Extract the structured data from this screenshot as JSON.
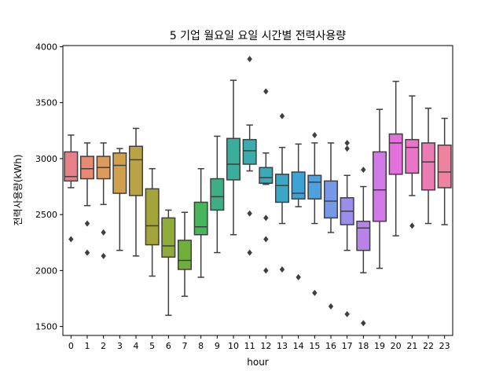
{
  "chart_data": {
    "type": "box",
    "title": "5 기업 월요일 요일 시간별 전력사용량",
    "xlabel": "hour",
    "ylabel": "전력사용량(kWh)",
    "ylim": [
      1420,
      4010
    ],
    "yticks": [
      1500,
      2000,
      2500,
      3000,
      3500,
      4000
    ],
    "grid": false,
    "categories": [
      "0",
      "1",
      "2",
      "3",
      "4",
      "5",
      "6",
      "7",
      "8",
      "9",
      "10",
      "11",
      "12",
      "13",
      "14",
      "15",
      "16",
      "17",
      "18",
      "19",
      "20",
      "21",
      "22",
      "23"
    ],
    "colors": [
      "#e8808a",
      "#e88a72",
      "#dd9a5e",
      "#d0a04d",
      "#b9a344",
      "#a3a43c",
      "#8fac3a",
      "#6fb03b",
      "#48b45b",
      "#3caf85",
      "#3aae9b",
      "#3bac ab",
      "#3ba9b8",
      "#3ca6c6",
      "#3ea3d4",
      "#4ea0e0",
      "#7598e8",
      "#9a8ee9",
      "#b683e8",
      "#d17ae5",
      "#e271dc",
      "#e974c8",
      "#ec7bb4",
      "#ee83a0"
    ],
    "boxes": [
      {
        "hour": "0",
        "whislo": 2740,
        "q1": 2800,
        "median": 2840,
        "q3": 3060,
        "whishi": 3210,
        "fliers": [
          2280
        ]
      },
      {
        "hour": "1",
        "whislo": 2580,
        "q1": 2820,
        "median": 2910,
        "q3": 3020,
        "whishi": 3140,
        "fliers": [
          2420,
          2160
        ]
      },
      {
        "hour": "2",
        "whislo": 2590,
        "q1": 2820,
        "median": 2920,
        "q3": 3020,
        "whishi": 3140,
        "fliers": [
          2340,
          2130
        ]
      },
      {
        "hour": "3",
        "whislo": 2180,
        "q1": 2690,
        "median": 2940,
        "q3": 3050,
        "whishi": 3090,
        "fliers": []
      },
      {
        "hour": "4",
        "whislo": 2130,
        "q1": 2670,
        "median": 2990,
        "q3": 3110,
        "whishi": 3270,
        "fliers": []
      },
      {
        "hour": "5",
        "whislo": 1950,
        "q1": 2230,
        "median": 2400,
        "q3": 2730,
        "whishi": 2910,
        "fliers": []
      },
      {
        "hour": "6",
        "whislo": 1600,
        "q1": 2120,
        "median": 2220,
        "q3": 2470,
        "whishi": 2540,
        "fliers": []
      },
      {
        "hour": "7",
        "whislo": 1770,
        "q1": 2010,
        "median": 2090,
        "q3": 2270,
        "whishi": 2520,
        "fliers": []
      },
      {
        "hour": "8",
        "whislo": 1940,
        "q1": 2320,
        "median": 2390,
        "q3": 2610,
        "whishi": 2910,
        "fliers": []
      },
      {
        "hour": "9",
        "whislo": 2160,
        "q1": 2540,
        "median": 2660,
        "q3": 2820,
        "whishi": 3200,
        "fliers": []
      },
      {
        "hour": "10",
        "whislo": 2320,
        "q1": 2810,
        "median": 2950,
        "q3": 3180,
        "whishi": 3700,
        "fliers": []
      },
      {
        "hour": "11",
        "whislo": 2890,
        "q1": 2950,
        "median": 3070,
        "q3": 3170,
        "whishi": 3300,
        "fliers": [
          3890,
          2510,
          2160
        ]
      },
      {
        "hour": "12",
        "whislo": 2770,
        "q1": 2780,
        "median": 2830,
        "q3": 2920,
        "whishi": 3050,
        "fliers": [
          3600,
          2470,
          2280,
          2000
        ]
      },
      {
        "hour": "13",
        "whislo": 2420,
        "q1": 2610,
        "median": 2760,
        "q3": 2860,
        "whishi": 3100,
        "fliers": [
          3380,
          2010
        ]
      },
      {
        "hour": "14",
        "whislo": 2570,
        "q1": 2640,
        "median": 2690,
        "q3": 2880,
        "whishi": 3130,
        "fliers": [
          1940
        ]
      },
      {
        "hour": "15",
        "whislo": 2420,
        "q1": 2640,
        "median": 2790,
        "q3": 2850,
        "whishi": 3140,
        "fliers": [
          3210,
          1800
        ]
      },
      {
        "hour": "16",
        "whislo": 2340,
        "q1": 2470,
        "median": 2620,
        "q3": 2800,
        "whishi": 3140,
        "fliers": [
          1680
        ]
      },
      {
        "hour": "17",
        "whislo": 2180,
        "q1": 2410,
        "median": 2530,
        "q3": 2650,
        "whishi": 2850,
        "fliers": [
          3140,
          3090,
          1610
        ]
      },
      {
        "hour": "18",
        "whislo": 1980,
        "q1": 2180,
        "median": 2380,
        "q3": 2440,
        "whishi": 2750,
        "fliers": [
          2900,
          1530
        ]
      },
      {
        "hour": "19",
        "whislo": 2020,
        "q1": 2440,
        "median": 2720,
        "q3": 3060,
        "whishi": 3440,
        "fliers": []
      },
      {
        "hour": "20",
        "whislo": 2310,
        "q1": 2860,
        "median": 3140,
        "q3": 3220,
        "whishi": 3690,
        "fliers": []
      },
      {
        "hour": "21",
        "whislo": 2670,
        "q1": 2870,
        "median": 3100,
        "q3": 3170,
        "whishi": 3560,
        "fliers": [
          2400
        ]
      },
      {
        "hour": "22",
        "whislo": 2420,
        "q1": 2720,
        "median": 2970,
        "q3": 3140,
        "whishi": 3450,
        "fliers": []
      },
      {
        "hour": "23",
        "whislo": 2410,
        "q1": 2740,
        "median": 2880,
        "q3": 3120,
        "whishi": 3360,
        "fliers": []
      }
    ]
  }
}
